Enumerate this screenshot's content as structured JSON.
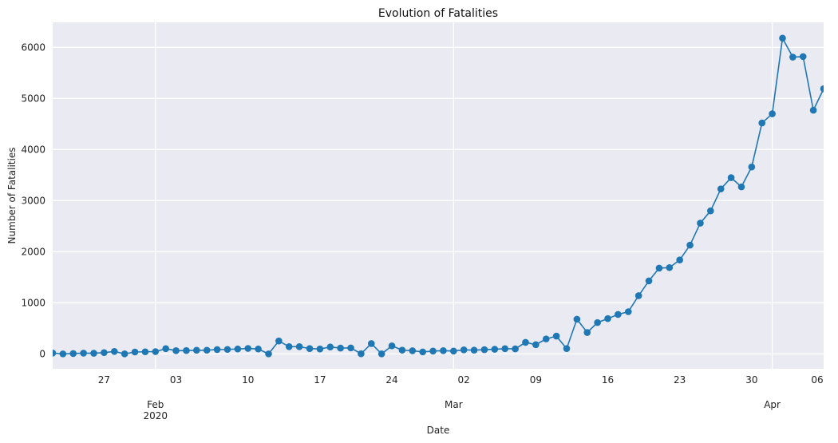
{
  "chart_data": {
    "type": "line",
    "title": "Evolution of Fatalities",
    "xlabel": "Date",
    "ylabel": "Number of Fatalities",
    "grid": true,
    "ylim": [
      -290,
      6490
    ],
    "xlim": [
      "2020-01-22",
      "2020-04-06"
    ],
    "y_ticks": [
      0,
      1000,
      2000,
      3000,
      4000,
      5000,
      6000
    ],
    "x_minor_ticks": [
      {
        "date": "2020-01-27",
        "label": "27"
      },
      {
        "date": "2020-02-03",
        "label": "03"
      },
      {
        "date": "2020-02-10",
        "label": "10"
      },
      {
        "date": "2020-02-17",
        "label": "17"
      },
      {
        "date": "2020-02-24",
        "label": "24"
      },
      {
        "date": "2020-03-02",
        "label": "02"
      },
      {
        "date": "2020-03-09",
        "label": "09"
      },
      {
        "date": "2020-03-16",
        "label": "16"
      },
      {
        "date": "2020-03-23",
        "label": "23"
      },
      {
        "date": "2020-03-30",
        "label": "30"
      },
      {
        "date": "2020-04-06",
        "label": "06"
      }
    ],
    "x_major_ticks": [
      {
        "date": "2020-02-01",
        "label": "Feb",
        "sublabel": "2020"
      },
      {
        "date": "2020-03-01",
        "label": "Mar",
        "sublabel": ""
      },
      {
        "date": "2020-04-01",
        "label": "Apr",
        "sublabel": ""
      }
    ],
    "series": [
      {
        "color": "#1f77b4",
        "x": [
          "2020-01-22",
          "2020-01-23",
          "2020-01-24",
          "2020-01-25",
          "2020-01-26",
          "2020-01-27",
          "2020-01-28",
          "2020-01-29",
          "2020-01-30",
          "2020-01-31",
          "2020-02-01",
          "2020-02-02",
          "2020-02-03",
          "2020-02-04",
          "2020-02-05",
          "2020-02-06",
          "2020-02-07",
          "2020-02-08",
          "2020-02-09",
          "2020-02-10",
          "2020-02-11",
          "2020-02-12",
          "2020-02-13",
          "2020-02-14",
          "2020-02-15",
          "2020-02-16",
          "2020-02-17",
          "2020-02-18",
          "2020-02-19",
          "2020-02-20",
          "2020-02-21",
          "2020-02-22",
          "2020-02-23",
          "2020-02-24",
          "2020-02-25",
          "2020-02-26",
          "2020-02-27",
          "2020-02-28",
          "2020-02-29",
          "2020-03-01",
          "2020-03-02",
          "2020-03-03",
          "2020-03-04",
          "2020-03-05",
          "2020-03-06",
          "2020-03-07",
          "2020-03-08",
          "2020-03-09",
          "2020-03-10",
          "2020-03-11",
          "2020-03-12",
          "2020-03-13",
          "2020-03-14",
          "2020-03-15",
          "2020-03-16",
          "2020-03-17",
          "2020-03-18",
          "2020-03-19",
          "2020-03-20",
          "2020-03-21",
          "2020-03-22",
          "2020-03-23",
          "2020-03-24",
          "2020-03-25",
          "2020-03-26",
          "2020-03-27",
          "2020-03-28",
          "2020-03-29",
          "2020-03-30",
          "2020-03-31",
          "2020-04-01",
          "2020-04-02",
          "2020-04-03",
          "2020-04-04",
          "2020-04-05",
          "2020-04-06"
        ],
        "values": [
          17,
          1,
          8,
          16,
          14,
          26,
          49,
          2,
          38,
          42,
          46,
          103,
          64,
          66,
          72,
          73,
          86,
          89,
          97,
          108,
          97,
          1,
          254,
          143,
          142,
          105,
          98,
          136,
          115,
          118,
          4,
          203,
          2,
          159,
          75,
          63,
          40,
          56,
          64,
          56,
          80,
          74,
          84,
          92,
          103,
          99,
          227,
          182,
          294,
          349,
          105,
          680,
          420,
          614,
          692,
          773,
          827,
          1140,
          1430,
          1680,
          1690,
          1840,
          2130,
          2560,
          2800,
          3230,
          3450,
          3270,
          3660,
          4520,
          4700,
          6180,
          5810,
          5820,
          4770,
          5190
        ]
      }
    ]
  }
}
